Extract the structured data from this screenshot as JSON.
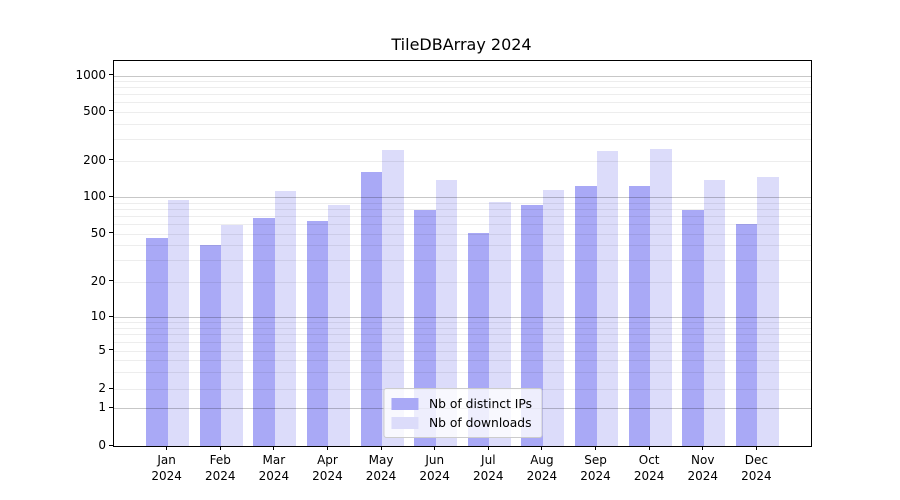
{
  "chart_data": {
    "type": "bar",
    "title": "TileDBArray 2024",
    "categories": [
      {
        "month": "Jan",
        "year": "2024"
      },
      {
        "month": "Feb",
        "year": "2024"
      },
      {
        "month": "Mar",
        "year": "2024"
      },
      {
        "month": "Apr",
        "year": "2024"
      },
      {
        "month": "May",
        "year": "2024"
      },
      {
        "month": "Jun",
        "year": "2024"
      },
      {
        "month": "Jul",
        "year": "2024"
      },
      {
        "month": "Aug",
        "year": "2024"
      },
      {
        "month": "Sep",
        "year": "2024"
      },
      {
        "month": "Oct",
        "year": "2024"
      },
      {
        "month": "Nov",
        "year": "2024"
      },
      {
        "month": "Dec",
        "year": "2024"
      }
    ],
    "series": [
      {
        "name": "Nb of distinct IPs",
        "color": "#a9a9f6",
        "values": [
          46,
          40,
          67,
          64,
          160,
          78,
          51,
          86,
          123,
          124,
          78,
          60
        ]
      },
      {
        "name": "Nb of downloads",
        "color": "#dcdcfa",
        "values": [
          95,
          59,
          112,
          86,
          245,
          138,
          91,
          115,
          238,
          248,
          140,
          146
        ]
      }
    ],
    "yticks": [
      0,
      1,
      2,
      5,
      10,
      20,
      50,
      100,
      200,
      500,
      1000
    ],
    "yscale": "symlog",
    "ylim": [
      0,
      1000
    ],
    "xlabel": "",
    "ylabel": "",
    "grid": "on",
    "grid_major_color": "#c6c6c6",
    "grid_minor_color": "#ededed",
    "legend_position": "lower center",
    "background_color": "#ffffff"
  }
}
